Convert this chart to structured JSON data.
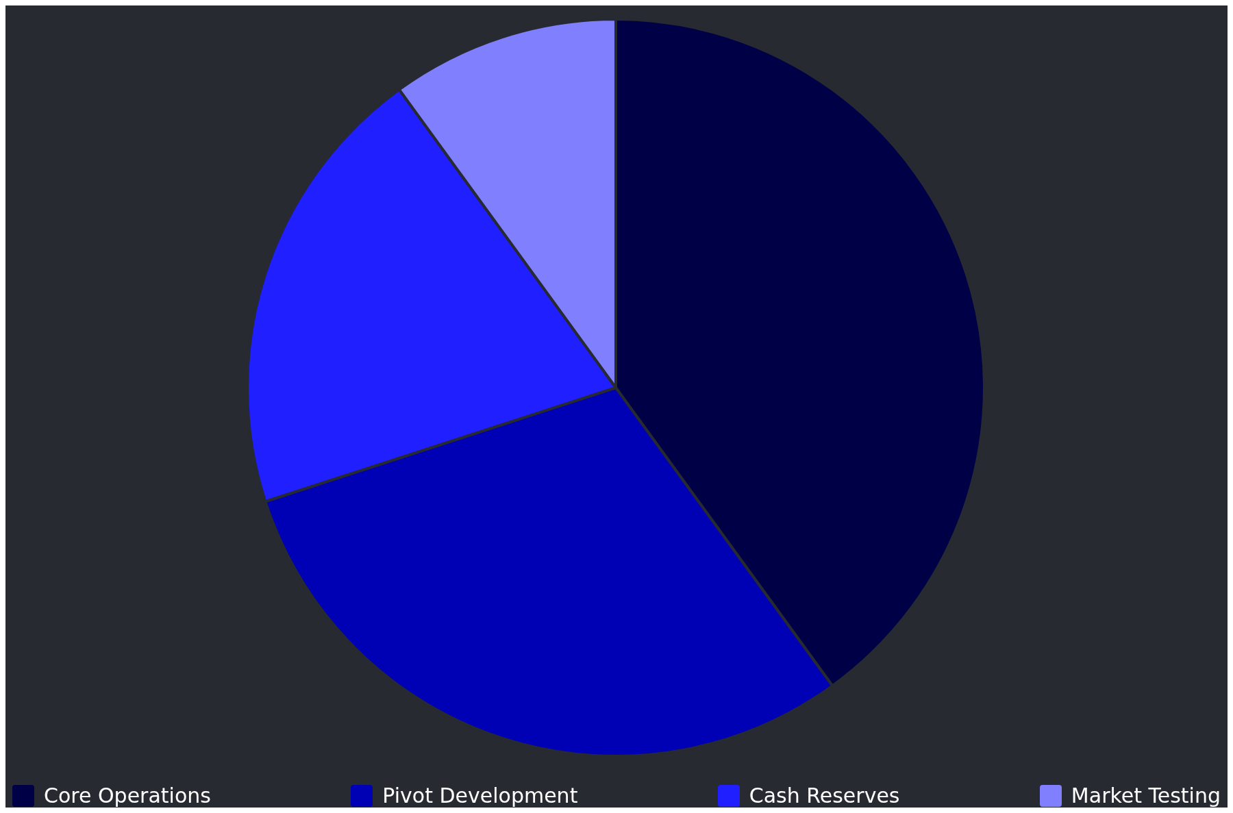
{
  "chart_data": {
    "type": "pie",
    "categories": [
      "Core Operations",
      "Pivot Development",
      "Cash Reserves",
      "Market Testing"
    ],
    "values": [
      40,
      30,
      20,
      10
    ],
    "colors": [
      "#000046",
      "#0000b4",
      "#1f1fff",
      "#8080ff"
    ],
    "legend": "bottom"
  }
}
